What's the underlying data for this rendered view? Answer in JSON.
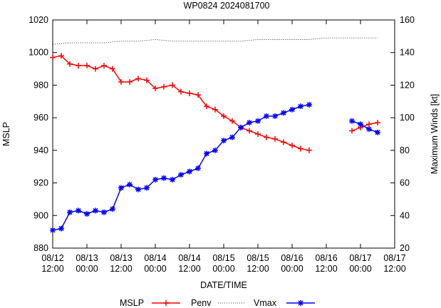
{
  "chart_data": {
    "type": "line",
    "title": "WP0824 2024081700",
    "xlabel": "DATE/TIME",
    "ylabel": "MSLP",
    "y2label": "Maximum Winds [kt]",
    "x_unit": "hours",
    "xlim": [
      0,
      120
    ],
    "ylim": [
      880,
      1020
    ],
    "y2lim": [
      20,
      160
    ],
    "x_ticks": [
      {
        "x": 0,
        "line1": "08/12",
        "line2": "12:00"
      },
      {
        "x": 12,
        "line1": "08/13",
        "line2": "00:00"
      },
      {
        "x": 24,
        "line1": "08/13",
        "line2": "12:00"
      },
      {
        "x": 36,
        "line1": "08/14",
        "line2": "00:00"
      },
      {
        "x": 48,
        "line1": "08/14",
        "line2": "12:00"
      },
      {
        "x": 60,
        "line1": "08/15",
        "line2": "00:00"
      },
      {
        "x": 72,
        "line1": "08/15",
        "line2": "12:00"
      },
      {
        "x": 84,
        "line1": "08/16",
        "line2": "00:00"
      },
      {
        "x": 96,
        "line1": "08/16",
        "line2": "12:00"
      },
      {
        "x": 108,
        "line1": "08/17",
        "line2": "00:00"
      },
      {
        "x": 120,
        "line1": "08/17",
        "line2": "12:00"
      }
    ],
    "y_ticks": [
      880,
      900,
      920,
      940,
      960,
      980,
      1000,
      1020
    ],
    "y2_ticks": [
      20,
      40,
      60,
      80,
      100,
      120,
      140,
      160
    ],
    "legend": {
      "placement": "bottom",
      "title": "MSLP"
    },
    "series": [
      {
        "name": "Penv",
        "axis": "y",
        "color": "#ff0000",
        "marker": "plus",
        "style": "solid",
        "x": [
          0,
          3,
          6,
          9,
          12,
          15,
          18,
          21,
          24,
          27,
          30,
          33,
          36,
          39,
          42,
          45,
          48,
          51,
          54,
          57,
          60,
          63,
          66,
          69,
          72,
          75,
          78,
          81,
          84,
          87,
          90,
          93,
          96,
          105,
          108,
          111,
          114
        ],
        "y": [
          997,
          998,
          993,
          992,
          992,
          990,
          992,
          990,
          982,
          982,
          984,
          983,
          978,
          979,
          980,
          976,
          975,
          974,
          967,
          965,
          961,
          958,
          954,
          952,
          950,
          948,
          947,
          945,
          943,
          941,
          940,
          null,
          null,
          952,
          954,
          956,
          957
        ]
      },
      {
        "name": "",
        "axis": "y",
        "color": "#000000",
        "marker": "none",
        "style": "dotted",
        "x": [
          0,
          6,
          12,
          18,
          24,
          30,
          36,
          42,
          48,
          54,
          60,
          66,
          72,
          78,
          84,
          90,
          96,
          102,
          108,
          114
        ],
        "y": [
          1005,
          1006,
          1006,
          1006,
          1007,
          1007,
          1008,
          1007,
          1007,
          1007,
          1007,
          1007,
          1008,
          1008,
          1008,
          1008,
          1009,
          1009,
          1009,
          1009
        ]
      },
      {
        "name": "Vmax",
        "axis": "y2",
        "color": "#0000ff",
        "marker": "star",
        "style": "solid",
        "x": [
          0,
          3,
          6,
          9,
          12,
          15,
          18,
          21,
          24,
          27,
          30,
          33,
          36,
          39,
          42,
          45,
          48,
          51,
          54,
          57,
          60,
          63,
          66,
          69,
          72,
          75,
          78,
          81,
          84,
          87,
          90,
          93,
          96,
          105,
          108,
          111,
          114
        ],
        "y": [
          31,
          32,
          42,
          43,
          41,
          43,
          42,
          44,
          57,
          59,
          56,
          57,
          62,
          63,
          62,
          65,
          67,
          69,
          78,
          80,
          86,
          88,
          94,
          97,
          98,
          101,
          101,
          103,
          105,
          107,
          108,
          null,
          null,
          98,
          96,
          93,
          91
        ]
      }
    ]
  }
}
